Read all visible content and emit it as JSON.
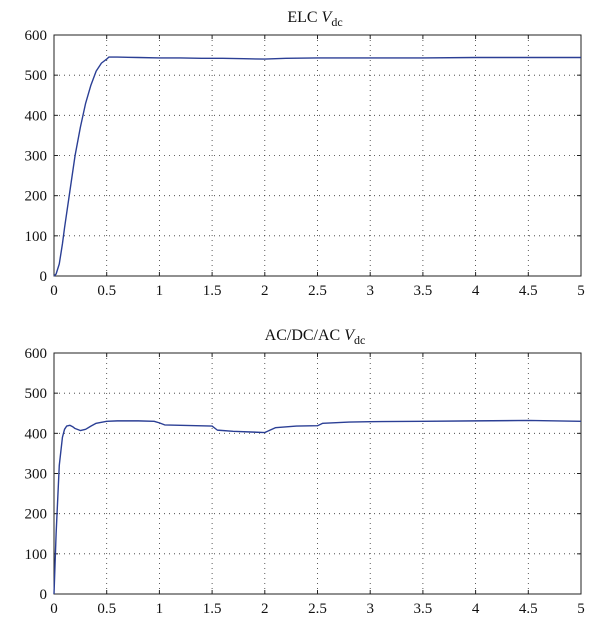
{
  "chart_data": [
    {
      "type": "line",
      "title_main": "ELC ",
      "title_var": "V",
      "title_sub": "dc",
      "xlim": [
        0,
        5
      ],
      "ylim": [
        0,
        600
      ],
      "xticks": [
        0,
        0.5,
        1,
        1.5,
        2,
        2.5,
        3,
        3.5,
        4,
        4.5,
        5
      ],
      "yticks": [
        0,
        100,
        200,
        300,
        400,
        500,
        600
      ],
      "xtick_labels": [
        "0",
        "0.5",
        "1",
        "1.5",
        "2",
        "2.5",
        "3",
        "3.5",
        "4",
        "4.5",
        "5"
      ],
      "ytick_labels": [
        "0",
        "100",
        "200",
        "300",
        "400",
        "500",
        "600"
      ],
      "grid": true,
      "color": "#2b3f95",
      "series": [
        {
          "x": [
            0,
            0.02,
            0.05,
            0.08,
            0.1,
            0.15,
            0.2,
            0.25,
            0.3,
            0.35,
            0.4,
            0.45,
            0.5,
            0.52,
            0.6,
            0.8,
            1.0,
            1.2,
            1.4,
            1.6,
            1.8,
            2.0,
            2.2,
            2.5,
            3.0,
            3.5,
            4.0,
            4.5,
            5.0
          ],
          "y": [
            0,
            5,
            30,
            80,
            120,
            210,
            300,
            370,
            430,
            475,
            510,
            530,
            540,
            545,
            545,
            544,
            543,
            543,
            542,
            542,
            541,
            540,
            542,
            543,
            543,
            543,
            544,
            544,
            544
          ]
        }
      ]
    },
    {
      "type": "line",
      "title_main": "AC/DC/AC ",
      "title_var": "V",
      "title_sub": "dc",
      "xlim": [
        0,
        5
      ],
      "ylim": [
        0,
        600
      ],
      "xticks": [
        0,
        0.5,
        1,
        1.5,
        2,
        2.5,
        3,
        3.5,
        4,
        4.5,
        5
      ],
      "yticks": [
        0,
        100,
        200,
        300,
        400,
        500,
        600
      ],
      "xtick_labels": [
        "0",
        "0.5",
        "1",
        "1.5",
        "2",
        "2.5",
        "3",
        "3.5",
        "4",
        "4.5",
        "5"
      ],
      "ytick_labels": [
        "0",
        "100",
        "200",
        "300",
        "400",
        "500",
        "600"
      ],
      "grid": true,
      "color": "#2b3f95",
      "series": [
        {
          "x": [
            0,
            0.02,
            0.05,
            0.08,
            0.1,
            0.12,
            0.15,
            0.18,
            0.2,
            0.25,
            0.3,
            0.35,
            0.4,
            0.5,
            0.6,
            0.8,
            0.95,
            1.0,
            1.05,
            1.2,
            1.5,
            1.55,
            1.7,
            1.9,
            2.0,
            2.05,
            2.1,
            2.3,
            2.5,
            2.55,
            2.8,
            3.0,
            3.5,
            4.0,
            4.5,
            5.0
          ],
          "y": [
            0,
            150,
            320,
            390,
            410,
            418,
            420,
            416,
            412,
            407,
            410,
            418,
            425,
            430,
            431,
            431,
            430,
            426,
            421,
            420,
            418,
            408,
            405,
            403,
            402,
            408,
            414,
            418,
            419,
            425,
            428,
            429,
            430,
            431,
            432,
            430
          ]
        }
      ]
    }
  ]
}
